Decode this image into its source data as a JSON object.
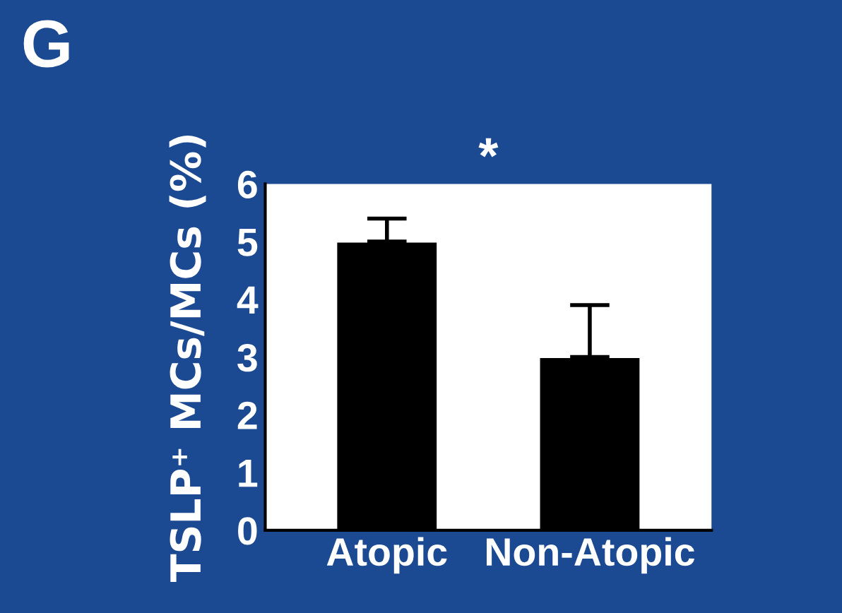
{
  "chart_data": {
    "type": "bar",
    "title": "G",
    "ylabel": "TSLP⁺ MCs/MCs (%)",
    "categories": [
      "Atopic",
      "Non-Atopic"
    ],
    "values": [
      5,
      3
    ],
    "errors": [
      [
        5,
        5.4
      ],
      [
        3,
        3.9
      ]
    ],
    "color": "#000000",
    "ylim": [
      0,
      6
    ],
    "yticks": [
      0,
      1,
      2,
      3,
      4,
      5,
      6
    ],
    "annotations": [
      "*"
    ],
    "grid": false,
    "legend": false
  }
}
